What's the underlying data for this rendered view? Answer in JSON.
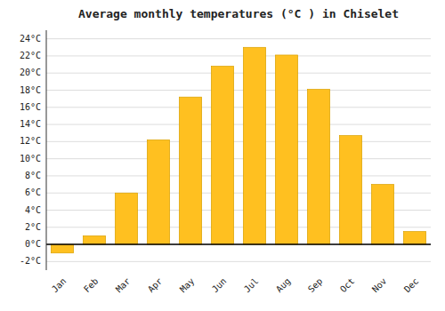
{
  "chart_data": {
    "type": "bar",
    "title": "Average monthly temperatures (°C ) in Chiselet",
    "categories": [
      "Jan",
      "Feb",
      "Mar",
      "Apr",
      "May",
      "Jun",
      "Jul",
      "Aug",
      "Sep",
      "Oct",
      "Nov",
      "Dec"
    ],
    "values": [
      -1.0,
      1.0,
      6.0,
      12.2,
      17.2,
      20.8,
      23.0,
      22.1,
      18.1,
      12.7,
      7.0,
      1.5
    ],
    "color": "#FFC020",
    "ylim": [
      -3,
      25
    ],
    "yticks": [
      {
        "value": -2,
        "label": "-2°C"
      },
      {
        "value": 0,
        "label": "0°C"
      },
      {
        "value": 2,
        "label": "2°C"
      },
      {
        "value": 4,
        "label": "4°C"
      },
      {
        "value": 6,
        "label": "6°C"
      },
      {
        "value": 8,
        "label": "8°C"
      },
      {
        "value": 10,
        "label": "10°C"
      },
      {
        "value": 12,
        "label": "12°C"
      },
      {
        "value": 14,
        "label": "14°C"
      },
      {
        "value": 16,
        "label": "16°C"
      },
      {
        "value": 18,
        "label": "18°C"
      },
      {
        "value": 20,
        "label": "20°C"
      },
      {
        "value": 22,
        "label": "22°C"
      },
      {
        "value": 24,
        "label": "24°C"
      }
    ],
    "grid": true
  }
}
